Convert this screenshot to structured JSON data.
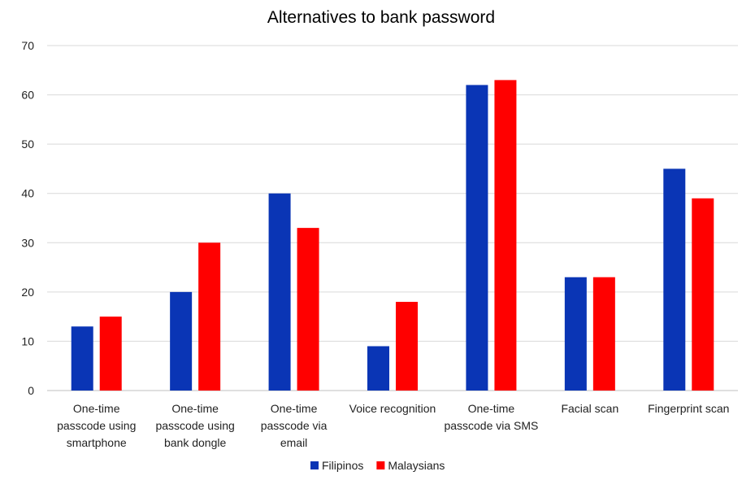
{
  "chart_data": {
    "type": "bar",
    "title": "Alternatives to bank password",
    "xlabel": "",
    "ylabel": "",
    "ylim": [
      0,
      70
    ],
    "yticks": [
      0,
      10,
      20,
      30,
      40,
      50,
      60,
      70
    ],
    "grid": true,
    "legend_position": "bottom",
    "categories": [
      [
        "One-time",
        "passcode using",
        "smartphone"
      ],
      [
        "One-time",
        "passcode using",
        "bank dongle"
      ],
      [
        "One-time",
        "passcode via",
        "email"
      ],
      [
        "Voice recognition"
      ],
      [
        "One-time",
        "passcode via SMS"
      ],
      [
        "Facial scan"
      ],
      [
        "Fingerprint scan"
      ]
    ],
    "series": [
      {
        "name": "Filipinos",
        "color": "#0a35b5",
        "values": [
          13,
          20,
          40,
          9,
          62,
          23,
          45
        ]
      },
      {
        "name": "Malaysians",
        "color": "#ff0000",
        "values": [
          15,
          30,
          33,
          18,
          63,
          23,
          39
        ]
      }
    ]
  }
}
